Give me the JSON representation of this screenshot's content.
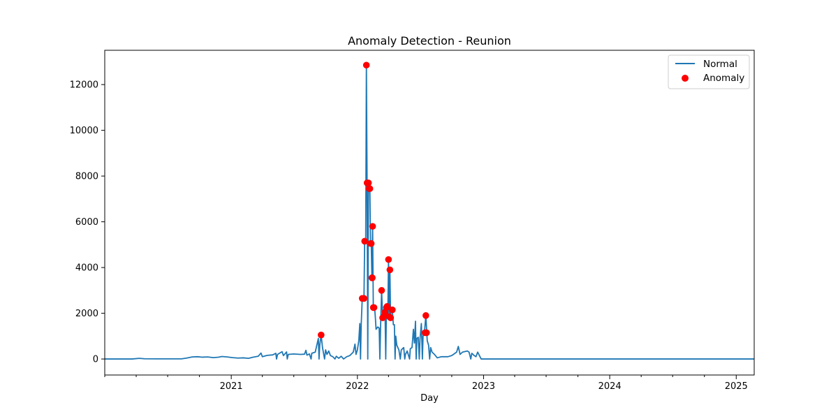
{
  "chart_data": {
    "type": "line",
    "title": "Anomaly Detection - Reunion",
    "xlabel": "Day",
    "ylabel": "",
    "x_range": [
      "2020-01-01",
      "2025-02-22"
    ],
    "ylim": [
      -700,
      13500
    ],
    "y_ticks": [
      0,
      2000,
      4000,
      6000,
      8000,
      10000,
      12000
    ],
    "x_ticks": [
      "2021",
      "2022",
      "2023",
      "2024",
      "2025"
    ],
    "grid": false,
    "legend_position": "top-right",
    "colors": {
      "normal": "#1f77b4",
      "anomaly": "#ff0000"
    },
    "series": [
      {
        "name": "Normal",
        "type": "line",
        "points": [
          [
            "2020-01-01",
            0
          ],
          [
            "2020-03-20",
            0
          ],
          [
            "2020-04-10",
            30
          ],
          [
            "2020-04-25",
            10
          ],
          [
            "2020-06-01",
            5
          ],
          [
            "2020-08-10",
            5
          ],
          [
            "2020-08-25",
            40
          ],
          [
            "2020-09-10",
            90
          ],
          [
            "2020-09-25",
            100
          ],
          [
            "2020-10-10",
            80
          ],
          [
            "2020-10-25",
            90
          ],
          [
            "2020-11-10",
            60
          ],
          [
            "2020-11-25",
            80
          ],
          [
            "2020-12-05",
            110
          ],
          [
            "2020-12-20",
            90
          ],
          [
            "2021-01-05",
            60
          ],
          [
            "2021-01-20",
            40
          ],
          [
            "2021-02-05",
            50
          ],
          [
            "2021-02-20",
            30
          ],
          [
            "2021-03-05",
            80
          ],
          [
            "2021-03-20",
            120
          ],
          [
            "2021-03-28",
            260
          ],
          [
            "2021-04-01",
            100
          ],
          [
            "2021-04-15",
            160
          ],
          [
            "2021-05-01",
            180
          ],
          [
            "2021-05-10",
            250
          ],
          [
            "2021-05-12",
            0
          ],
          [
            "2021-05-15",
            200
          ],
          [
            "2021-05-28",
            320
          ],
          [
            "2021-06-01",
            150
          ],
          [
            "2021-06-10",
            310
          ],
          [
            "2021-06-12",
            0
          ],
          [
            "2021-06-15",
            200
          ],
          [
            "2021-07-01",
            220
          ],
          [
            "2021-07-20",
            200
          ],
          [
            "2021-08-01",
            210
          ],
          [
            "2021-08-05",
            380
          ],
          [
            "2021-08-08",
            170
          ],
          [
            "2021-08-15",
            220
          ],
          [
            "2021-08-20",
            0
          ],
          [
            "2021-08-22",
            250
          ],
          [
            "2021-09-01",
            300
          ],
          [
            "2021-09-10",
            900
          ],
          [
            "2021-09-12",
            0
          ],
          [
            "2021-09-14",
            600
          ],
          [
            "2021-09-18",
            1050
          ],
          [
            "2021-09-22",
            500
          ],
          [
            "2021-09-28",
            0
          ],
          [
            "2021-10-01",
            400
          ],
          [
            "2021-10-05",
            200
          ],
          [
            "2021-10-10",
            350
          ],
          [
            "2021-10-15",
            150
          ],
          [
            "2021-10-22",
            100
          ],
          [
            "2021-10-28",
            0
          ],
          [
            "2021-11-01",
            120
          ],
          [
            "2021-11-08",
            30
          ],
          [
            "2021-11-15",
            120
          ],
          [
            "2021-11-22",
            0
          ],
          [
            "2021-12-01",
            100
          ],
          [
            "2021-12-10",
            150
          ],
          [
            "2021-12-20",
            300
          ],
          [
            "2021-12-25",
            650
          ],
          [
            "2021-12-28",
            200
          ],
          [
            "2022-01-01",
            400
          ],
          [
            "2022-01-05",
            800
          ],
          [
            "2022-01-08",
            1550
          ],
          [
            "2022-01-10",
            0
          ],
          [
            "2022-01-12",
            1500
          ],
          [
            "2022-01-15",
            2650
          ],
          [
            "2022-01-20",
            2650
          ],
          [
            "2022-01-22",
            5150
          ],
          [
            "2022-01-25",
            5100
          ],
          [
            "2022-01-27",
            12850
          ],
          [
            "2022-01-29",
            7700
          ],
          [
            "2022-01-31",
            0
          ],
          [
            "2022-02-02",
            7700
          ],
          [
            "2022-02-04",
            7450
          ],
          [
            "2022-02-06",
            7450
          ],
          [
            "2022-02-08",
            5050
          ],
          [
            "2022-02-10",
            5050
          ],
          [
            "2022-02-12",
            3550
          ],
          [
            "2022-02-14",
            5800
          ],
          [
            "2022-02-16",
            2250
          ],
          [
            "2022-02-18",
            2250
          ],
          [
            "2022-02-20",
            2200
          ],
          [
            "2022-02-22",
            1800
          ],
          [
            "2022-02-24",
            1300
          ],
          [
            "2022-03-01",
            1400
          ],
          [
            "2022-03-05",
            1350
          ],
          [
            "2022-03-07",
            0
          ],
          [
            "2022-03-09",
            1400
          ],
          [
            "2022-03-12",
            3000
          ],
          [
            "2022-03-15",
            1800
          ],
          [
            "2022-03-18",
            1700
          ],
          [
            "2022-03-20",
            1900
          ],
          [
            "2022-03-22",
            2050
          ],
          [
            "2022-03-24",
            0
          ],
          [
            "2022-03-26",
            2250
          ],
          [
            "2022-03-28",
            2300
          ],
          [
            "2022-03-30",
            1900
          ],
          [
            "2022-04-01",
            4350
          ],
          [
            "2022-04-03",
            1850
          ],
          [
            "2022-04-05",
            3900
          ],
          [
            "2022-04-07",
            1800
          ],
          [
            "2022-04-09",
            2200
          ],
          [
            "2022-04-12",
            2150
          ],
          [
            "2022-04-15",
            1500
          ],
          [
            "2022-04-18",
            1500
          ],
          [
            "2022-04-20",
            0
          ],
          [
            "2022-04-22",
            1000
          ],
          [
            "2022-04-25",
            600
          ],
          [
            "2022-05-01",
            400
          ],
          [
            "2022-05-05",
            0
          ],
          [
            "2022-05-08",
            400
          ],
          [
            "2022-05-15",
            500
          ],
          [
            "2022-05-18",
            0
          ],
          [
            "2022-05-20",
            200
          ],
          [
            "2022-05-25",
            350
          ],
          [
            "2022-06-01",
            0
          ],
          [
            "2022-06-03",
            450
          ],
          [
            "2022-06-08",
            500
          ],
          [
            "2022-06-12",
            1300
          ],
          [
            "2022-06-15",
            700
          ],
          [
            "2022-06-18",
            1650
          ],
          [
            "2022-06-20",
            0
          ],
          [
            "2022-06-22",
            900
          ],
          [
            "2022-06-26",
            950
          ],
          [
            "2022-06-29",
            0
          ],
          [
            "2022-07-01",
            850
          ],
          [
            "2022-07-05",
            1550
          ],
          [
            "2022-07-08",
            0
          ],
          [
            "2022-07-10",
            1000
          ],
          [
            "2022-07-14",
            1150
          ],
          [
            "2022-07-18",
            1900
          ],
          [
            "2022-07-22",
            800
          ],
          [
            "2022-07-26",
            600
          ],
          [
            "2022-07-29",
            0
          ],
          [
            "2022-08-01",
            500
          ],
          [
            "2022-08-05",
            300
          ],
          [
            "2022-08-12",
            200
          ],
          [
            "2022-08-20",
            50
          ],
          [
            "2022-09-01",
            100
          ],
          [
            "2022-09-20",
            100
          ],
          [
            "2022-10-01",
            150
          ],
          [
            "2022-10-15",
            300
          ],
          [
            "2022-10-20",
            550
          ],
          [
            "2022-10-25",
            200
          ],
          [
            "2022-11-01",
            300
          ],
          [
            "2022-11-15",
            350
          ],
          [
            "2022-11-20",
            300
          ],
          [
            "2022-11-25",
            0
          ],
          [
            "2022-11-28",
            250
          ],
          [
            "2022-12-05",
            150
          ],
          [
            "2022-12-10",
            100
          ],
          [
            "2022-12-15",
            300
          ],
          [
            "2022-12-20",
            150
          ],
          [
            "2022-12-25",
            0
          ],
          [
            "2023-01-15",
            0
          ],
          [
            "2025-02-22",
            0
          ]
        ]
      },
      {
        "name": "Anomaly",
        "type": "scatter",
        "points": [
          [
            "2021-09-18",
            1050
          ],
          [
            "2022-01-15",
            2650
          ],
          [
            "2022-01-20",
            2650
          ],
          [
            "2022-01-22",
            5150
          ],
          [
            "2022-01-27",
            12850
          ],
          [
            "2022-01-29",
            7700
          ],
          [
            "2022-02-02",
            7700
          ],
          [
            "2022-02-04",
            7450
          ],
          [
            "2022-02-06",
            7450
          ],
          [
            "2022-02-08",
            5050
          ],
          [
            "2022-02-10",
            5050
          ],
          [
            "2022-02-12",
            3550
          ],
          [
            "2022-02-14",
            5800
          ],
          [
            "2022-02-13",
            3550
          ],
          [
            "2022-02-16",
            2250
          ],
          [
            "2022-02-18",
            2250
          ],
          [
            "2022-03-12",
            3000
          ],
          [
            "2022-03-15",
            1800
          ],
          [
            "2022-03-20",
            1900
          ],
          [
            "2022-03-22",
            2050
          ],
          [
            "2022-03-26",
            2250
          ],
          [
            "2022-03-28",
            2300
          ],
          [
            "2022-04-01",
            4350
          ],
          [
            "2022-04-03",
            1850
          ],
          [
            "2022-04-05",
            3900
          ],
          [
            "2022-04-07",
            1800
          ],
          [
            "2022-04-12",
            2150
          ],
          [
            "2022-07-18",
            1900
          ],
          [
            "2022-07-16",
            1150
          ],
          [
            "2022-07-20",
            1150
          ]
        ]
      }
    ]
  }
}
